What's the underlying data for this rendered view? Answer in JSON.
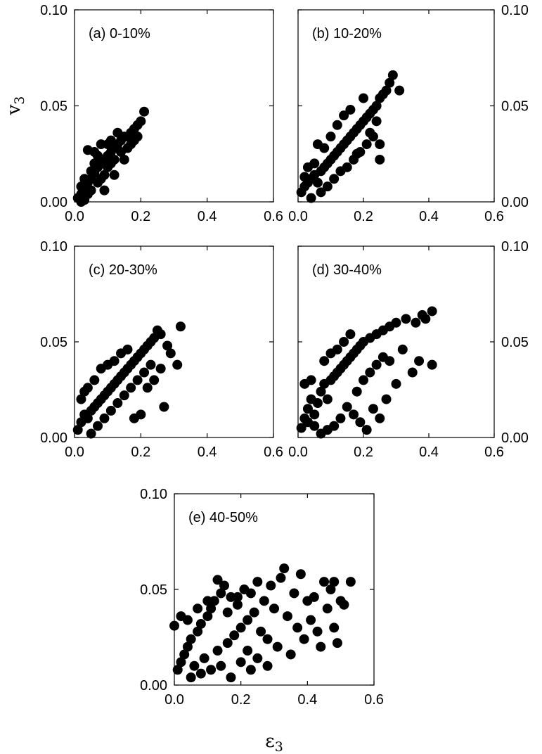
{
  "figure": {
    "ylabel": {
      "base": "v",
      "sub": "3"
    },
    "xlabel": {
      "base": "ε",
      "sub": "3"
    }
  },
  "chart_data": [
    {
      "type": "scatter",
      "label": "(a) 0-10%",
      "xlim": [
        0,
        0.6
      ],
      "ylim": [
        0,
        0.1
      ],
      "xticks": [
        "0.0",
        "0.2",
        "0.4",
        "0.6"
      ],
      "yticks": [
        "0.00",
        "0.05",
        "0.10"
      ],
      "x_tick_values": [
        0,
        0.2,
        0.4,
        0.6
      ],
      "y_tick_values": [
        0,
        0.05,
        0.1
      ],
      "ytick_side": "left",
      "color": "#000000",
      "points": [
        [
          0.01,
          0.002
        ],
        [
          0.02,
          0.004
        ],
        [
          0.03,
          0.006
        ],
        [
          0.02,
          0.008
        ],
        [
          0.04,
          0.01
        ],
        [
          0.05,
          0.012
        ],
        [
          0.03,
          0.012
        ],
        [
          0.06,
          0.015
        ],
        [
          0.07,
          0.018
        ],
        [
          0.05,
          0.016
        ],
        [
          0.08,
          0.02
        ],
        [
          0.09,
          0.022
        ],
        [
          0.1,
          0.024
        ],
        [
          0.07,
          0.024
        ],
        [
          0.11,
          0.026
        ],
        [
          0.12,
          0.028
        ],
        [
          0.13,
          0.03
        ],
        [
          0.11,
          0.032
        ],
        [
          0.14,
          0.032
        ],
        [
          0.15,
          0.034
        ],
        [
          0.16,
          0.034
        ],
        [
          0.17,
          0.036
        ],
        [
          0.18,
          0.038
        ],
        [
          0.19,
          0.04
        ],
        [
          0.2,
          0.042
        ],
        [
          0.21,
          0.047
        ],
        [
          0.04,
          0.027
        ],
        [
          0.09,
          0.006
        ],
        [
          0.12,
          0.014
        ],
        [
          0.08,
          0.03
        ],
        [
          0.06,
          0.026
        ],
        [
          0.15,
          0.022
        ],
        [
          0.02,
          0.0
        ],
        [
          0.03,
          0.001
        ],
        [
          0.1,
          0.018
        ],
        [
          0.14,
          0.026
        ],
        [
          0.16,
          0.028
        ],
        [
          0.18,
          0.032
        ],
        [
          0.13,
          0.036
        ],
        [
          0.05,
          0.006
        ],
        [
          0.07,
          0.01
        ],
        [
          0.09,
          0.014
        ],
        [
          0.11,
          0.02
        ],
        [
          0.04,
          0.004
        ],
        [
          0.06,
          0.02
        ],
        [
          0.08,
          0.012
        ],
        [
          0.12,
          0.022
        ],
        [
          0.17,
          0.03
        ],
        [
          0.19,
          0.034
        ],
        [
          0.1,
          0.03
        ]
      ]
    },
    {
      "type": "scatter",
      "label": "(b) 10-20%",
      "xlim": [
        0,
        0.6
      ],
      "ylim": [
        0,
        0.1
      ],
      "xticks": [
        "0.0",
        "0.2",
        "0.4",
        "0.6"
      ],
      "yticks": [
        "0.00",
        "0.05",
        "0.10"
      ],
      "x_tick_values": [
        0,
        0.2,
        0.4,
        0.6
      ],
      "y_tick_values": [
        0,
        0.05,
        0.1
      ],
      "ytick_side": "right",
      "color": "#000000",
      "points": [
        [
          0.01,
          0.005
        ],
        [
          0.02,
          0.008
        ],
        [
          0.03,
          0.01
        ],
        [
          0.04,
          0.012
        ],
        [
          0.05,
          0.014
        ],
        [
          0.06,
          0.01
        ],
        [
          0.07,
          0.016
        ],
        [
          0.08,
          0.018
        ],
        [
          0.09,
          0.02
        ],
        [
          0.1,
          0.022
        ],
        [
          0.11,
          0.024
        ],
        [
          0.12,
          0.026
        ],
        [
          0.13,
          0.028
        ],
        [
          0.14,
          0.03
        ],
        [
          0.15,
          0.032
        ],
        [
          0.16,
          0.034
        ],
        [
          0.17,
          0.036
        ],
        [
          0.18,
          0.038
        ],
        [
          0.19,
          0.04
        ],
        [
          0.2,
          0.042
        ],
        [
          0.21,
          0.044
        ],
        [
          0.22,
          0.046
        ],
        [
          0.23,
          0.048
        ],
        [
          0.24,
          0.05
        ],
        [
          0.25,
          0.054
        ],
        [
          0.26,
          0.056
        ],
        [
          0.27,
          0.058
        ],
        [
          0.28,
          0.062
        ],
        [
          0.29,
          0.066
        ],
        [
          0.31,
          0.058
        ],
        [
          0.06,
          0.03
        ],
        [
          0.07,
          0.005
        ],
        [
          0.09,
          0.008
        ],
        [
          0.11,
          0.012
        ],
        [
          0.13,
          0.016
        ],
        [
          0.15,
          0.018
        ],
        [
          0.17,
          0.022
        ],
        [
          0.19,
          0.026
        ],
        [
          0.21,
          0.03
        ],
        [
          0.23,
          0.034
        ],
        [
          0.25,
          0.03
        ],
        [
          0.12,
          0.04
        ],
        [
          0.14,
          0.045
        ],
        [
          0.1,
          0.034
        ],
        [
          0.08,
          0.028
        ],
        [
          0.05,
          0.02
        ],
        [
          0.03,
          0.018
        ],
        [
          0.2,
          0.054
        ],
        [
          0.25,
          0.022
        ],
        [
          0.04,
          0.002
        ],
        [
          0.02,
          0.013
        ],
        [
          0.16,
          0.048
        ],
        [
          0.18,
          0.025
        ],
        [
          0.22,
          0.036
        ],
        [
          0.24,
          0.042
        ]
      ]
    },
    {
      "type": "scatter",
      "label": "(c) 20-30%",
      "xlim": [
        0,
        0.6
      ],
      "ylim": [
        0,
        0.1
      ],
      "xticks": [
        "0.0",
        "0.2",
        "0.4",
        "0.6"
      ],
      "yticks": [
        "0.00",
        "0.05",
        "0.10"
      ],
      "x_tick_values": [
        0,
        0.2,
        0.4,
        0.6
      ],
      "y_tick_values": [
        0,
        0.05,
        0.1
      ],
      "ytick_side": "left",
      "color": "#000000",
      "points": [
        [
          0.01,
          0.004
        ],
        [
          0.02,
          0.008
        ],
        [
          0.03,
          0.012
        ],
        [
          0.04,
          0.01
        ],
        [
          0.05,
          0.014
        ],
        [
          0.06,
          0.016
        ],
        [
          0.07,
          0.018
        ],
        [
          0.08,
          0.02
        ],
        [
          0.09,
          0.022
        ],
        [
          0.1,
          0.024
        ],
        [
          0.11,
          0.026
        ],
        [
          0.12,
          0.028
        ],
        [
          0.13,
          0.03
        ],
        [
          0.14,
          0.032
        ],
        [
          0.15,
          0.034
        ],
        [
          0.16,
          0.036
        ],
        [
          0.17,
          0.038
        ],
        [
          0.18,
          0.04
        ],
        [
          0.19,
          0.042
        ],
        [
          0.2,
          0.044
        ],
        [
          0.21,
          0.046
        ],
        [
          0.22,
          0.048
        ],
        [
          0.23,
          0.05
        ],
        [
          0.24,
          0.052
        ],
        [
          0.26,
          0.054
        ],
        [
          0.25,
          0.056
        ],
        [
          0.32,
          0.058
        ],
        [
          0.31,
          0.038
        ],
        [
          0.27,
          0.016
        ],
        [
          0.29,
          0.044
        ],
        [
          0.03,
          0.024
        ],
        [
          0.05,
          0.002
        ],
        [
          0.07,
          0.006
        ],
        [
          0.09,
          0.01
        ],
        [
          0.11,
          0.014
        ],
        [
          0.13,
          0.018
        ],
        [
          0.15,
          0.022
        ],
        [
          0.17,
          0.026
        ],
        [
          0.19,
          0.03
        ],
        [
          0.21,
          0.034
        ],
        [
          0.23,
          0.038
        ],
        [
          0.08,
          0.036
        ],
        [
          0.1,
          0.038
        ],
        [
          0.12,
          0.04
        ],
        [
          0.14,
          0.044
        ],
        [
          0.16,
          0.046
        ],
        [
          0.18,
          0.01
        ],
        [
          0.2,
          0.012
        ],
        [
          0.02,
          0.02
        ],
        [
          0.04,
          0.026
        ],
        [
          0.06,
          0.03
        ],
        [
          0.22,
          0.026
        ],
        [
          0.24,
          0.03
        ],
        [
          0.26,
          0.036
        ],
        [
          0.28,
          0.048
        ]
      ]
    },
    {
      "type": "scatter",
      "label": "(d) 30-40%",
      "xlim": [
        0,
        0.6
      ],
      "ylim": [
        0,
        0.1
      ],
      "xticks": [
        "0.0",
        "0.2",
        "0.4",
        "0.6"
      ],
      "yticks": [
        "0.00",
        "0.05",
        "0.10"
      ],
      "x_tick_values": [
        0,
        0.2,
        0.4,
        0.6
      ],
      "y_tick_values": [
        0,
        0.05,
        0.1
      ],
      "ytick_side": "right",
      "color": "#000000",
      "points": [
        [
          0.01,
          0.005
        ],
        [
          0.02,
          0.01
        ],
        [
          0.03,
          0.015
        ],
        [
          0.04,
          0.02
        ],
        [
          0.05,
          0.012
        ],
        [
          0.06,
          0.018
        ],
        [
          0.07,
          0.024
        ],
        [
          0.08,
          0.028
        ],
        [
          0.09,
          0.02
        ],
        [
          0.1,
          0.03
        ],
        [
          0.11,
          0.032
        ],
        [
          0.12,
          0.034
        ],
        [
          0.13,
          0.036
        ],
        [
          0.14,
          0.038
        ],
        [
          0.15,
          0.04
        ],
        [
          0.16,
          0.042
        ],
        [
          0.17,
          0.044
        ],
        [
          0.18,
          0.046
        ],
        [
          0.19,
          0.048
        ],
        [
          0.2,
          0.05
        ],
        [
          0.22,
          0.052
        ],
        [
          0.24,
          0.054
        ],
        [
          0.26,
          0.056
        ],
        [
          0.28,
          0.058
        ],
        [
          0.3,
          0.06
        ],
        [
          0.33,
          0.062
        ],
        [
          0.36,
          0.06
        ],
        [
          0.38,
          0.064
        ],
        [
          0.39,
          0.062
        ],
        [
          0.41,
          0.066
        ],
        [
          0.41,
          0.038
        ],
        [
          0.37,
          0.04
        ],
        [
          0.35,
          0.034
        ],
        [
          0.32,
          0.046
        ],
        [
          0.3,
          0.028
        ],
        [
          0.27,
          0.02
        ],
        [
          0.25,
          0.01
        ],
        [
          0.23,
          0.015
        ],
        [
          0.21,
          0.004
        ],
        [
          0.19,
          0.008
        ],
        [
          0.17,
          0.012
        ],
        [
          0.15,
          0.016
        ],
        [
          0.13,
          0.01
        ],
        [
          0.11,
          0.006
        ],
        [
          0.09,
          0.004
        ],
        [
          0.07,
          0.002
        ],
        [
          0.05,
          0.006
        ],
        [
          0.03,
          0.008
        ],
        [
          0.08,
          0.04
        ],
        [
          0.1,
          0.044
        ],
        [
          0.12,
          0.046
        ],
        [
          0.14,
          0.05
        ],
        [
          0.16,
          0.054
        ],
        [
          0.18,
          0.024
        ],
        [
          0.2,
          0.03
        ],
        [
          0.22,
          0.034
        ],
        [
          0.24,
          0.038
        ],
        [
          0.26,
          0.042
        ],
        [
          0.28,
          0.04
        ],
        [
          0.02,
          0.028
        ],
        [
          0.04,
          0.03
        ]
      ]
    },
    {
      "type": "scatter",
      "label": "(e) 40-50%",
      "xlim": [
        0,
        0.6
      ],
      "ylim": [
        0,
        0.1
      ],
      "xticks": [
        "0.0",
        "0.2",
        "0.4",
        "0.6"
      ],
      "yticks": [
        "0.00",
        "0.05",
        "0.10"
      ],
      "x_tick_values": [
        0,
        0.2,
        0.4,
        0.6
      ],
      "y_tick_values": [
        0,
        0.05,
        0.1
      ],
      "ytick_side": "left",
      "color": "#000000",
      "points": [
        [
          0.0,
          0.031
        ],
        [
          0.01,
          0.008
        ],
        [
          0.02,
          0.012
        ],
        [
          0.03,
          0.016
        ],
        [
          0.04,
          0.02
        ],
        [
          0.05,
          0.024
        ],
        [
          0.06,
          0.01
        ],
        [
          0.07,
          0.028
        ],
        [
          0.08,
          0.032
        ],
        [
          0.09,
          0.014
        ],
        [
          0.1,
          0.036
        ],
        [
          0.11,
          0.04
        ],
        [
          0.12,
          0.044
        ],
        [
          0.13,
          0.018
        ],
        [
          0.14,
          0.048
        ],
        [
          0.15,
          0.052
        ],
        [
          0.16,
          0.022
        ],
        [
          0.17,
          0.046
        ],
        [
          0.18,
          0.026
        ],
        [
          0.19,
          0.042
        ],
        [
          0.2,
          0.03
        ],
        [
          0.21,
          0.05
        ],
        [
          0.22,
          0.034
        ],
        [
          0.23,
          0.048
        ],
        [
          0.24,
          0.038
        ],
        [
          0.25,
          0.054
        ],
        [
          0.26,
          0.028
        ],
        [
          0.27,
          0.044
        ],
        [
          0.28,
          0.024
        ],
        [
          0.29,
          0.052
        ],
        [
          0.3,
          0.04
        ],
        [
          0.31,
          0.02
        ],
        [
          0.32,
          0.056
        ],
        [
          0.33,
          0.061
        ],
        [
          0.34,
          0.036
        ],
        [
          0.35,
          0.016
        ],
        [
          0.36,
          0.048
        ],
        [
          0.37,
          0.03
        ],
        [
          0.38,
          0.058
        ],
        [
          0.39,
          0.024
        ],
        [
          0.4,
          0.044
        ],
        [
          0.41,
          0.034
        ],
        [
          0.42,
          0.046
        ],
        [
          0.43,
          0.028
        ],
        [
          0.44,
          0.02
        ],
        [
          0.45,
          0.054
        ],
        [
          0.46,
          0.04
        ],
        [
          0.47,
          0.05
        ],
        [
          0.48,
          0.03
        ],
        [
          0.49,
          0.022
        ],
        [
          0.5,
          0.044
        ],
        [
          0.51,
          0.042
        ],
        [
          0.53,
          0.054
        ],
        [
          0.48,
          0.054
        ],
        [
          0.05,
          0.004
        ],
        [
          0.08,
          0.006
        ],
        [
          0.11,
          0.008
        ],
        [
          0.14,
          0.01
        ],
        [
          0.17,
          0.004
        ],
        [
          0.2,
          0.012
        ],
        [
          0.23,
          0.008
        ],
        [
          0.02,
          0.036
        ],
        [
          0.04,
          0.034
        ],
        [
          0.07,
          0.04
        ],
        [
          0.1,
          0.044
        ],
        [
          0.13,
          0.055
        ],
        [
          0.16,
          0.038
        ],
        [
          0.19,
          0.046
        ],
        [
          0.22,
          0.018
        ],
        [
          0.25,
          0.014
        ],
        [
          0.28,
          0.01
        ]
      ]
    }
  ]
}
